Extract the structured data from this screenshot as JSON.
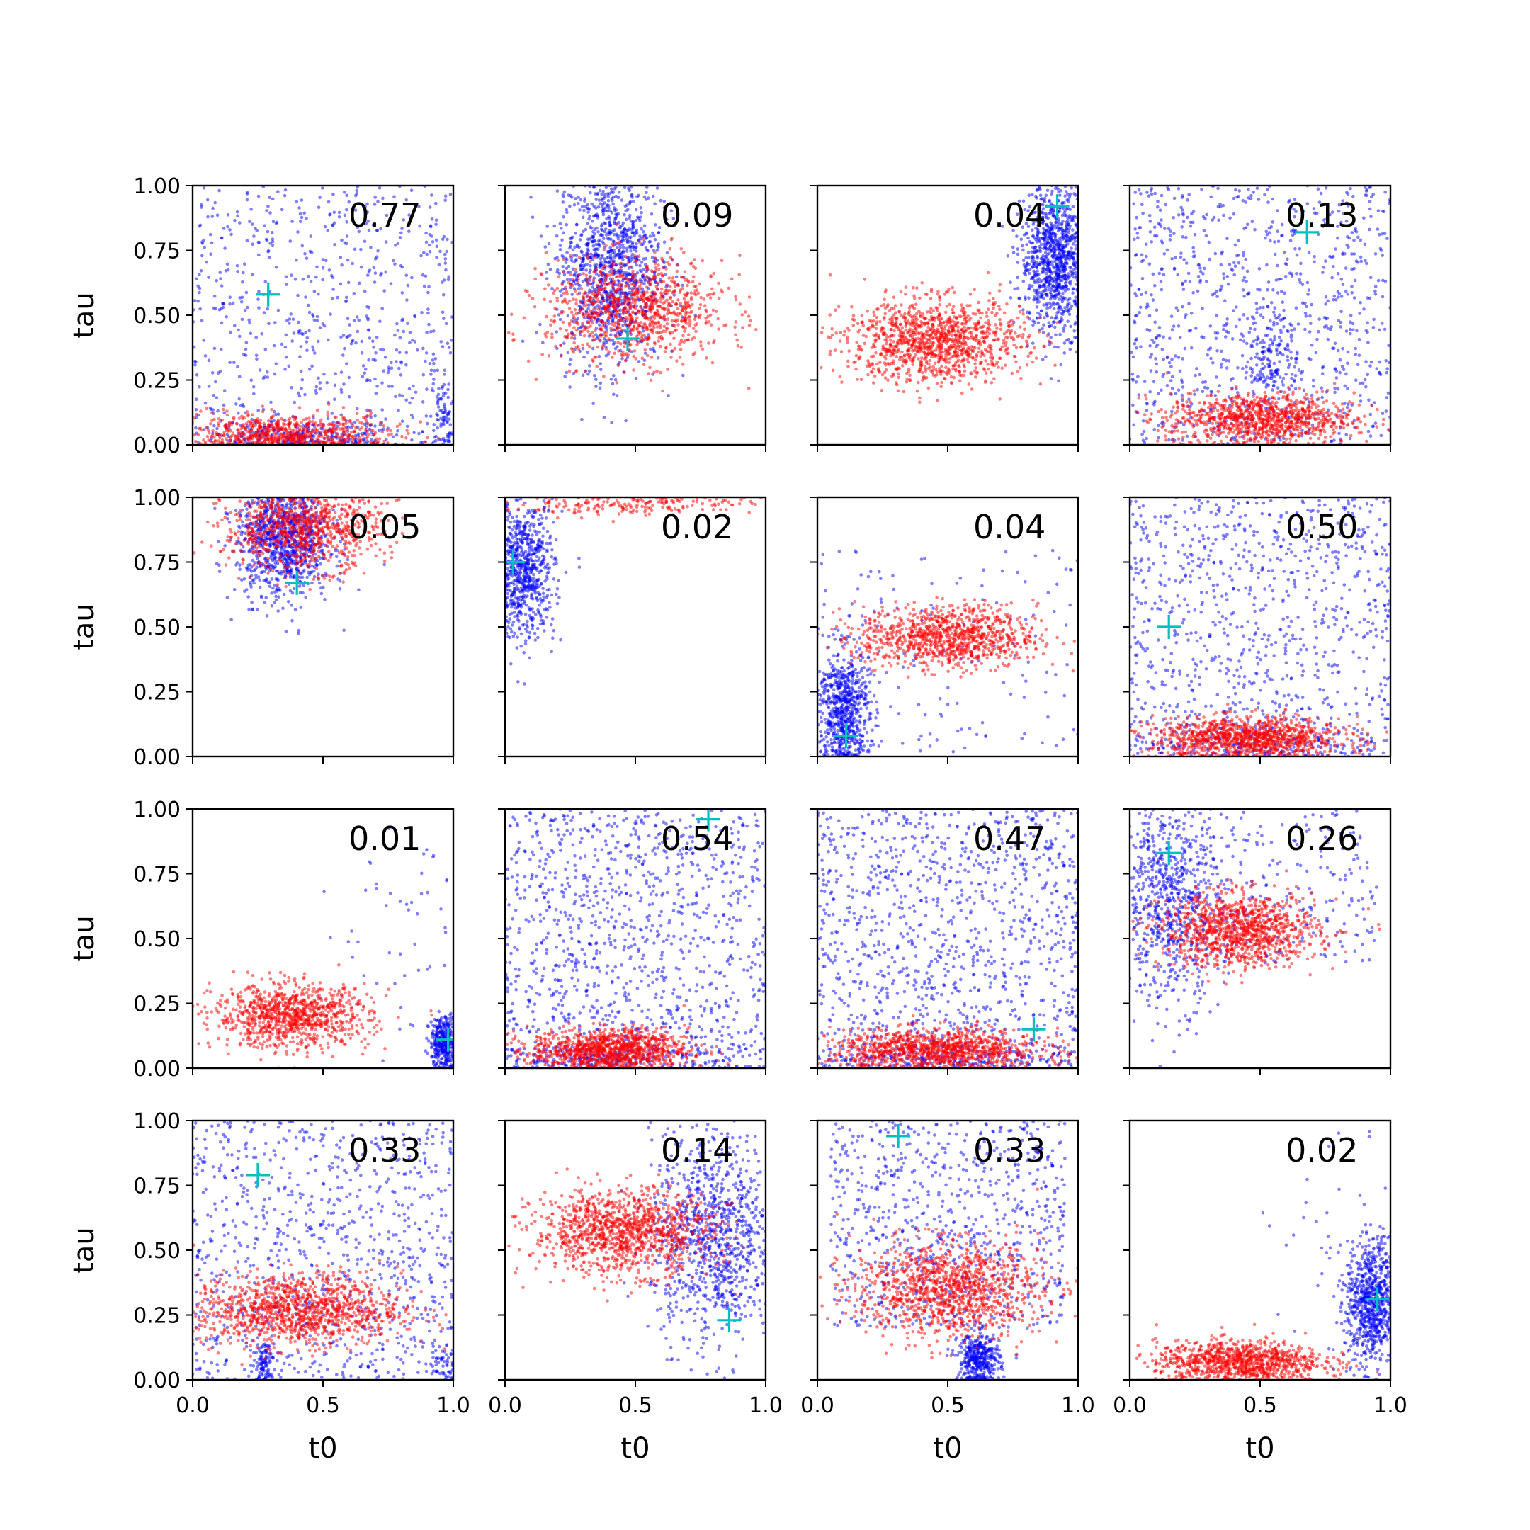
{
  "chart_data": {
    "type": "scatter",
    "grid_rows": 4,
    "grid_cols": 4,
    "shared_axes": true,
    "xlabel": "t0",
    "ylabel": "tau",
    "xlim": [
      0,
      1
    ],
    "ylim": [
      0,
      1
    ],
    "xticks": [
      "0.0",
      "0.5",
      "1.0"
    ],
    "yticks": [
      "0.00",
      "0.25",
      "0.50",
      "0.75",
      "1.00"
    ],
    "grid": false,
    "series_colors": {
      "first": "#0000ff",
      "second": "#ff0000",
      "marker": "#00bfbf"
    },
    "panels": [
      {
        "value": "0.77",
        "marker": [
          0.29,
          0.58
        ],
        "blue": [
          {
            "cx": 0.5,
            "cy": 0.5,
            "sx": 0.5,
            "sy": 0.5,
            "n": 700,
            "uniform": true
          },
          {
            "cx": 0.4,
            "cy": 0.03,
            "sx": 0.2,
            "sy": 0.03,
            "n": 250
          },
          {
            "cx": 0.97,
            "cy": 0.1,
            "sx": 0.03,
            "sy": 0.1,
            "n": 80
          }
        ],
        "red": [
          {
            "cx": 0.35,
            "cy": 0.04,
            "sx": 0.2,
            "sy": 0.04,
            "n": 700
          }
        ]
      },
      {
        "value": "0.09",
        "marker": [
          0.47,
          0.41
        ],
        "blue": [
          {
            "cx": 0.4,
            "cy": 0.7,
            "sx": 0.1,
            "sy": 0.2,
            "n": 1200
          }
        ],
        "red": [
          {
            "cx": 0.5,
            "cy": 0.52,
            "sx": 0.17,
            "sy": 0.1,
            "n": 1000
          }
        ]
      },
      {
        "value": "0.04",
        "marker": [
          0.92,
          0.92
        ],
        "blue": [
          {
            "cx": 0.92,
            "cy": 0.72,
            "sx": 0.07,
            "sy": 0.14,
            "n": 1100
          }
        ],
        "red": [
          {
            "cx": 0.45,
            "cy": 0.4,
            "sx": 0.17,
            "sy": 0.08,
            "n": 1200
          }
        ]
      },
      {
        "value": "0.13",
        "marker": [
          0.68,
          0.82
        ],
        "blue": [
          {
            "cx": 0.5,
            "cy": 0.5,
            "sx": 0.5,
            "sy": 0.5,
            "n": 900,
            "uniform": true
          },
          {
            "cx": 0.55,
            "cy": 0.35,
            "sx": 0.05,
            "sy": 0.08,
            "n": 150
          }
        ],
        "red": [
          {
            "cx": 0.5,
            "cy": 0.1,
            "sx": 0.18,
            "sy": 0.05,
            "n": 1000
          }
        ]
      },
      {
        "value": "0.05",
        "marker": [
          0.4,
          0.67
        ],
        "blue": [
          {
            "cx": 0.35,
            "cy": 0.85,
            "sx": 0.09,
            "sy": 0.12,
            "n": 1100
          }
        ],
        "red": [
          {
            "cx": 0.42,
            "cy": 0.88,
            "sx": 0.15,
            "sy": 0.08,
            "n": 900
          }
        ]
      },
      {
        "value": "0.02",
        "marker": [
          0.03,
          0.75
        ],
        "blue": [
          {
            "cx": 0.07,
            "cy": 0.72,
            "sx": 0.06,
            "sy": 0.13,
            "n": 800
          }
        ],
        "red": [
          {
            "cx": 0.5,
            "cy": 0.98,
            "sx": 0.25,
            "sy": 0.025,
            "n": 250
          }
        ]
      },
      {
        "value": "0.04",
        "marker": [
          0.11,
          0.08
        ],
        "blue": [
          {
            "cx": 0.1,
            "cy": 0.18,
            "sx": 0.05,
            "sy": 0.12,
            "n": 700
          },
          {
            "cx": 0.5,
            "cy": 0.4,
            "sx": 0.5,
            "sy": 0.4,
            "n": 150,
            "uniform": true
          }
        ],
        "red": [
          {
            "cx": 0.5,
            "cy": 0.46,
            "sx": 0.17,
            "sy": 0.06,
            "n": 1000
          }
        ]
      },
      {
        "value": "0.50",
        "marker": [
          0.15,
          0.5
        ],
        "blue": [
          {
            "cx": 0.5,
            "cy": 0.5,
            "sx": 0.5,
            "sy": 0.5,
            "n": 900,
            "uniform": true
          },
          {
            "cx": 0.5,
            "cy": 0.05,
            "sx": 0.25,
            "sy": 0.04,
            "n": 200
          }
        ],
        "red": [
          {
            "cx": 0.45,
            "cy": 0.07,
            "sx": 0.18,
            "sy": 0.04,
            "n": 1100
          }
        ]
      },
      {
        "value": "0.01",
        "marker": [
          0.98,
          0.11
        ],
        "blue": [
          {
            "cx": 0.97,
            "cy": 0.1,
            "sx": 0.03,
            "sy": 0.05,
            "n": 400
          },
          {
            "cx": 0.8,
            "cy": 0.55,
            "sx": 0.15,
            "sy": 0.25,
            "n": 60
          }
        ],
        "red": [
          {
            "cx": 0.38,
            "cy": 0.2,
            "sx": 0.15,
            "sy": 0.06,
            "n": 1000
          }
        ]
      },
      {
        "value": "0.54",
        "marker": [
          0.78,
          0.96
        ],
        "blue": [
          {
            "cx": 0.5,
            "cy": 0.5,
            "sx": 0.5,
            "sy": 0.5,
            "n": 1100,
            "uniform": true
          },
          {
            "cx": 0.4,
            "cy": 0.04,
            "sx": 0.25,
            "sy": 0.03,
            "n": 250
          }
        ],
        "red": [
          {
            "cx": 0.4,
            "cy": 0.07,
            "sx": 0.15,
            "sy": 0.04,
            "n": 1100
          }
        ]
      },
      {
        "value": "0.47",
        "marker": [
          0.83,
          0.15
        ],
        "blue": [
          {
            "cx": 0.5,
            "cy": 0.5,
            "sx": 0.5,
            "sy": 0.5,
            "n": 1100,
            "uniform": true
          },
          {
            "cx": 0.5,
            "cy": 0.04,
            "sx": 0.3,
            "sy": 0.03,
            "n": 250
          }
        ],
        "red": [
          {
            "cx": 0.45,
            "cy": 0.07,
            "sx": 0.2,
            "sy": 0.04,
            "n": 1100
          }
        ]
      },
      {
        "value": "0.26",
        "marker": [
          0.15,
          0.83
        ],
        "blue": [
          {
            "cx": 0.15,
            "cy": 0.65,
            "sx": 0.1,
            "sy": 0.2,
            "n": 700
          },
          {
            "cx": 0.5,
            "cy": 0.7,
            "sx": 0.45,
            "sy": 0.3,
            "n": 300,
            "uniform": true
          }
        ],
        "red": [
          {
            "cx": 0.42,
            "cy": 0.53,
            "sx": 0.15,
            "sy": 0.07,
            "n": 1100
          }
        ]
      },
      {
        "value": "0.33",
        "marker": [
          0.25,
          0.79
        ],
        "blue": [
          {
            "cx": 0.5,
            "cy": 0.5,
            "sx": 0.5,
            "sy": 0.5,
            "n": 900,
            "uniform": true
          },
          {
            "cx": 0.27,
            "cy": 0.06,
            "sx": 0.02,
            "sy": 0.04,
            "n": 100
          },
          {
            "cx": 0.97,
            "cy": 0.06,
            "sx": 0.02,
            "sy": 0.04,
            "n": 40
          }
        ],
        "red": [
          {
            "cx": 0.4,
            "cy": 0.27,
            "sx": 0.2,
            "sy": 0.07,
            "n": 1200
          }
        ]
      },
      {
        "value": "0.14",
        "marker": [
          0.86,
          0.23
        ],
        "blue": [
          {
            "cx": 0.8,
            "cy": 0.55,
            "sx": 0.12,
            "sy": 0.2,
            "n": 1000
          }
        ],
        "red": [
          {
            "cx": 0.45,
            "cy": 0.57,
            "sx": 0.17,
            "sy": 0.08,
            "n": 1200
          }
        ]
      },
      {
        "value": "0.33",
        "marker": [
          0.31,
          0.94
        ],
        "blue": [
          {
            "cx": 0.5,
            "cy": 0.6,
            "sx": 0.45,
            "sy": 0.4,
            "n": 800,
            "uniform": true
          },
          {
            "cx": 0.62,
            "cy": 0.08,
            "sx": 0.04,
            "sy": 0.05,
            "n": 400
          }
        ],
        "red": [
          {
            "cx": 0.5,
            "cy": 0.35,
            "sx": 0.18,
            "sy": 0.09,
            "n": 1200
          }
        ]
      },
      {
        "value": "0.02",
        "marker": [
          0.95,
          0.31
        ],
        "blue": [
          {
            "cx": 0.93,
            "cy": 0.3,
            "sx": 0.05,
            "sy": 0.12,
            "n": 800
          },
          {
            "cx": 0.8,
            "cy": 0.5,
            "sx": 0.2,
            "sy": 0.3,
            "n": 50
          }
        ],
        "red": [
          {
            "cx": 0.42,
            "cy": 0.07,
            "sx": 0.16,
            "sy": 0.04,
            "n": 1000
          }
        ]
      }
    ]
  }
}
